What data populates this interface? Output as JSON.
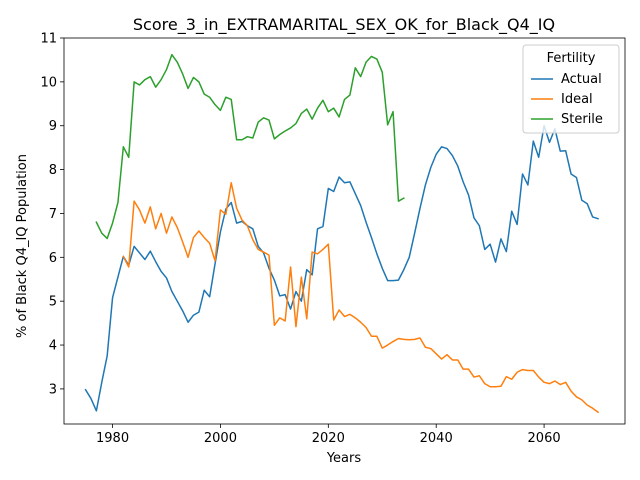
{
  "chart_data": {
    "type": "line",
    "title": "Score_3_in_EXTRAMARITAL_SEX_OK_for_Black_Q4_IQ",
    "xlabel": "Years",
    "ylabel": "% of Black Q4_IQ Population",
    "xlim": [
      1971,
      2075
    ],
    "ylim": [
      2.2,
      11.0
    ],
    "xticks": [
      1980,
      2000,
      2020,
      2040,
      2060
    ],
    "yticks": [
      3,
      4,
      5,
      6,
      7,
      8,
      9,
      10,
      11
    ],
    "grid": false,
    "legend": {
      "title": "Fertility",
      "position": "top-right"
    },
    "series": [
      {
        "name": "Actual",
        "color": "#1f77b4",
        "x": [
          1975,
          1976,
          1977,
          1978,
          1979,
          1980,
          1981,
          1982,
          1983,
          1984,
          1985,
          1986,
          1987,
          1988,
          1989,
          1990,
          1991,
          1992,
          1993,
          1994,
          1995,
          1996,
          1997,
          1998,
          1999,
          2000,
          2001,
          2002,
          2003,
          2004,
          2005,
          2006,
          2007,
          2008,
          2009,
          2010,
          2011,
          2012,
          2013,
          2014,
          2015,
          2016,
          2017,
          2018,
          2019,
          2020,
          2021,
          2022,
          2023,
          2024,
          2025,
          2026,
          2027,
          2028,
          2029,
          2030,
          2031,
          2032,
          2033,
          2034,
          2035,
          2036,
          2037,
          2038,
          2039,
          2040,
          2041,
          2042,
          2043,
          2044,
          2045,
          2046,
          2047,
          2048,
          2049,
          2050,
          2051,
          2052,
          2053,
          2054,
          2055,
          2056,
          2057,
          2058,
          2059,
          2060,
          2061,
          2062,
          2063,
          2064,
          2065,
          2066,
          2067,
          2068,
          2069,
          2070
        ],
        "values": [
          2.98,
          2.78,
          2.5,
          3.15,
          3.75,
          5.08,
          5.55,
          6.02,
          5.82,
          6.25,
          6.1,
          5.95,
          6.14,
          5.9,
          5.68,
          5.53,
          5.22,
          5.0,
          4.78,
          4.52,
          4.68,
          4.75,
          5.25,
          5.1,
          5.85,
          6.58,
          7.1,
          7.25,
          6.78,
          6.82,
          6.72,
          6.65,
          6.25,
          6.1,
          5.75,
          5.48,
          5.12,
          5.15,
          4.82,
          5.22,
          5.0,
          5.72,
          5.6,
          6.65,
          6.7,
          7.57,
          7.5,
          7.83,
          7.7,
          7.72,
          7.45,
          7.18,
          6.8,
          6.45,
          6.08,
          5.75,
          5.47,
          5.47,
          5.48,
          5.72,
          6.0,
          6.55,
          7.12,
          7.65,
          8.05,
          8.35,
          8.52,
          8.48,
          8.32,
          8.08,
          7.72,
          7.42,
          6.9,
          6.72,
          6.18,
          6.3,
          5.89,
          6.42,
          6.13,
          7.05,
          6.75,
          7.9,
          7.65,
          8.65,
          8.28,
          9.0,
          8.62,
          8.93,
          8.42,
          8.43,
          7.9,
          7.82,
          7.3,
          7.22,
          6.92,
          6.88
        ]
      },
      {
        "name": "Ideal",
        "color": "#ff7f0e",
        "x": [
          1982,
          1983,
          1984,
          1985,
          1986,
          1987,
          1988,
          1989,
          1990,
          1991,
          1992,
          1993,
          1994,
          1995,
          1996,
          1997,
          1998,
          1999,
          2000,
          2001,
          2002,
          2003,
          2004,
          2005,
          2006,
          2007,
          2008,
          2009,
          2010,
          2011,
          2012,
          2013,
          2014,
          2015,
          2016,
          2017,
          2018,
          2019,
          2020,
          2021,
          2022,
          2023,
          2024,
          2025,
          2026,
          2027,
          2028,
          2029,
          2030,
          2031,
          2032,
          2033,
          2034,
          2035,
          2036,
          2037,
          2038,
          2039,
          2040,
          2041,
          2042,
          2043,
          2044,
          2045,
          2046,
          2047,
          2048,
          2049,
          2050,
          2051,
          2052,
          2053,
          2054,
          2055,
          2056,
          2057,
          2058,
          2059,
          2060,
          2061,
          2062,
          2063,
          2064,
          2065,
          2066,
          2067,
          2068,
          2069,
          2070
        ],
        "values": [
          6.02,
          5.78,
          7.28,
          7.08,
          6.78,
          7.15,
          6.65,
          7.0,
          6.55,
          6.92,
          6.68,
          6.35,
          6.0,
          6.45,
          6.6,
          6.45,
          6.32,
          5.92,
          7.08,
          6.98,
          7.7,
          7.12,
          6.85,
          6.72,
          6.4,
          6.18,
          6.12,
          6.05,
          4.45,
          4.62,
          4.55,
          5.78,
          4.42,
          5.55,
          4.6,
          6.12,
          6.08,
          6.18,
          6.3,
          4.57,
          4.8,
          4.65,
          4.7,
          4.62,
          4.52,
          4.4,
          4.2,
          4.2,
          3.93,
          4.0,
          4.08,
          4.15,
          4.13,
          4.12,
          4.13,
          4.16,
          3.95,
          3.92,
          3.8,
          3.68,
          3.78,
          3.66,
          3.66,
          3.45,
          3.45,
          3.27,
          3.3,
          3.12,
          3.05,
          3.05,
          3.06,
          3.28,
          3.22,
          3.38,
          3.44,
          3.42,
          3.42,
          3.27,
          3.15,
          3.12,
          3.18,
          3.1,
          3.15,
          2.95,
          2.82,
          2.75,
          2.63,
          2.56,
          2.47
        ]
      },
      {
        "name": "Sterile",
        "color": "#2ca02c",
        "x": [
          1977,
          1978,
          1979,
          1980,
          1981,
          1982,
          1983,
          1984,
          1985,
          1986,
          1987,
          1988,
          1989,
          1990,
          1991,
          1992,
          1993,
          1994,
          1995,
          1996,
          1997,
          1998,
          1999,
          2000,
          2001,
          2002,
          2003,
          2004,
          2005,
          2006,
          2007,
          2008,
          2009,
          2010,
          2011,
          2012,
          2013,
          2014,
          2015,
          2016,
          2017,
          2018,
          2019,
          2020,
          2021,
          2022,
          2023,
          2024,
          2025,
          2026,
          2027,
          2028,
          2029,
          2030,
          2031,
          2032,
          2033,
          2034
        ],
        "values": [
          6.8,
          6.55,
          6.43,
          6.78,
          7.25,
          8.52,
          8.28,
          10.0,
          9.93,
          10.05,
          10.12,
          9.88,
          10.05,
          10.28,
          10.62,
          10.45,
          10.18,
          9.85,
          10.1,
          10.0,
          9.72,
          9.65,
          9.48,
          9.35,
          9.65,
          9.6,
          8.68,
          8.68,
          8.75,
          8.72,
          9.08,
          9.18,
          9.13,
          8.7,
          8.8,
          8.88,
          8.95,
          9.05,
          9.28,
          9.38,
          9.15,
          9.4,
          9.58,
          9.32,
          9.4,
          9.2,
          9.6,
          9.7,
          10.32,
          10.12,
          10.45,
          10.58,
          10.52,
          10.22,
          9.02,
          9.32,
          7.28,
          7.35
        ]
      }
    ]
  }
}
